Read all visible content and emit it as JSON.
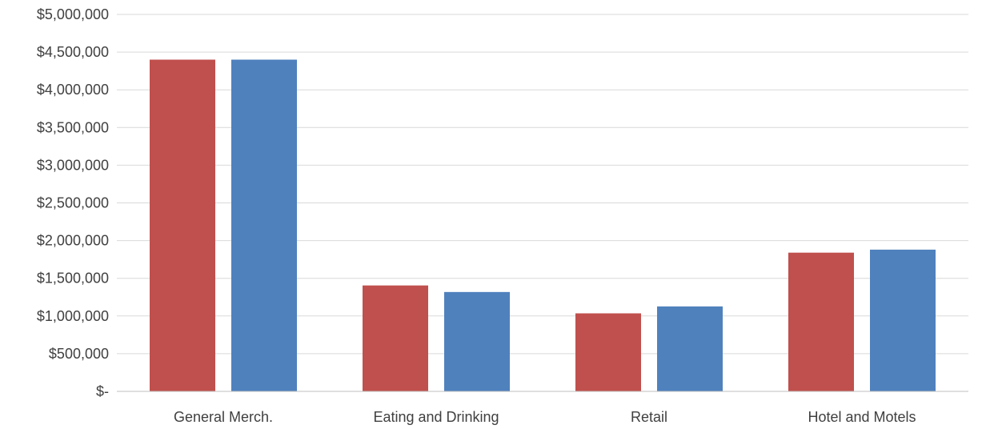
{
  "chart_data": {
    "type": "bar",
    "categories": [
      "General Merch.",
      "Eating and Drinking",
      "Retail",
      "Hotel and Motels"
    ],
    "series": [
      {
        "values": [
          4400000,
          1405000,
          1035000,
          1840000
        ]
      },
      {
        "values": [
          4400000,
          1318000,
          1127000,
          1880000
        ]
      }
    ],
    "ylim": [
      0,
      5000000
    ],
    "y_ticks": [
      0,
      500000,
      1000000,
      1500000,
      2000000,
      2500000,
      3000000,
      3500000,
      4000000,
      4500000,
      5000000
    ],
    "y_tick_labels": [
      "$-",
      "$500,000",
      "$1,000,000",
      "$1,500,000",
      "$2,000,000",
      "$2,500,000",
      "$3,000,000",
      "$3,500,000",
      "$4,000,000",
      "$4,500,000",
      "$5,000,000"
    ],
    "title": "",
    "xlabel": "",
    "ylabel": "",
    "grid": true,
    "legend": "none",
    "colors": {
      "series": [
        "#C0504D",
        "#4F81BD"
      ],
      "grid": "#D9D9D9",
      "axis": "#BFBFBF",
      "text": "#404040"
    }
  }
}
